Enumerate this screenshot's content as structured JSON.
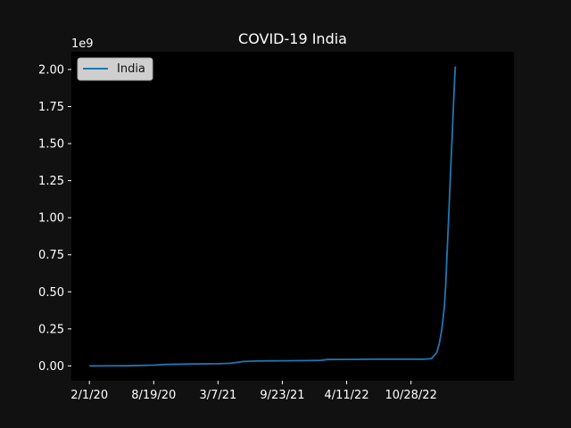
{
  "chart_data": {
    "type": "line",
    "title": "COVID-19 India",
    "xlabel": "",
    "ylabel": "",
    "y_offset_label": "1e9",
    "ylim": [
      -0.1,
      2.12
    ],
    "xlim": [
      -0.14,
      3.3
    ],
    "grid": false,
    "legend_position": "top-left",
    "x_ticks": [
      {
        "label": "2/1/20",
        "value": 0
      },
      {
        "label": "8/19/20",
        "value": 0.5
      },
      {
        "label": "3/7/21",
        "value": 1.0
      },
      {
        "label": "9/23/21",
        "value": 1.5
      },
      {
        "label": "4/11/22",
        "value": 2.0
      },
      {
        "label": "10/28/22",
        "value": 2.5
      }
    ],
    "y_ticks": [
      "0.00",
      "0.25",
      "0.50",
      "0.75",
      "1.00",
      "1.25",
      "1.50",
      "1.75",
      "2.00"
    ],
    "series": [
      {
        "name": "India",
        "color": "#1f77b4",
        "x": [
          0,
          0.3,
          0.5,
          0.6,
          0.8,
          1.0,
          1.1,
          1.2,
          1.25,
          1.3,
          1.4,
          1.5,
          1.7,
          1.8,
          1.85,
          2.0,
          2.2,
          2.6,
          2.66,
          2.7,
          2.72,
          2.74,
          2.76,
          2.77,
          2.78,
          2.79,
          2.8,
          2.81,
          2.82,
          2.83,
          2.84,
          2.845
        ],
        "values": [
          0,
          0.001,
          0.005,
          0.01,
          0.013,
          0.015,
          0.018,
          0.03,
          0.032,
          0.033,
          0.034,
          0.035,
          0.036,
          0.038,
          0.043,
          0.044,
          0.045,
          0.045,
          0.05,
          0.09,
          0.15,
          0.25,
          0.4,
          0.55,
          0.75,
          0.95,
          1.15,
          1.35,
          1.55,
          1.75,
          1.95,
          2.02
        ]
      }
    ]
  }
}
